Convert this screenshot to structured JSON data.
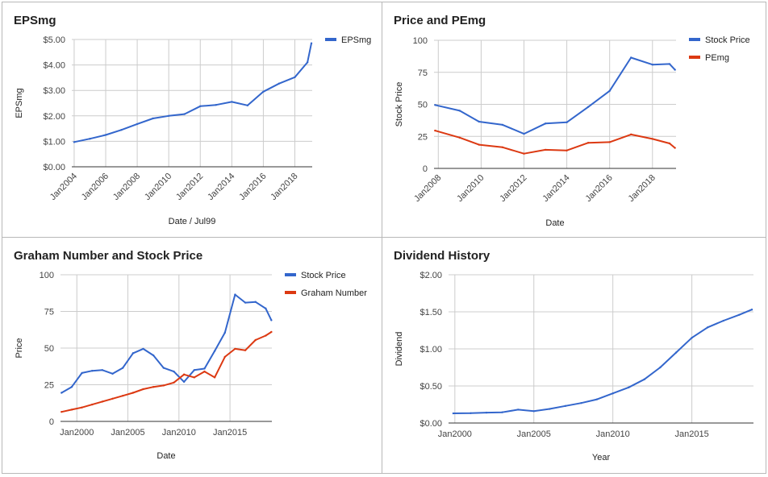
{
  "chart_data": [
    {
      "type": "line",
      "title": "EPSmg",
      "xlabel": "Date / Jul99",
      "ylabel": "EPSmg",
      "x_tick_labels": [
        "Jan2004",
        "Jan2006",
        "Jan2008",
        "Jan2010",
        "Jan2012",
        "Jan2014",
        "Jan2016",
        "Jan2018"
      ],
      "y_tick_labels": [
        "$0.00",
        "$1.00",
        "$2.00",
        "$3.00",
        "$4.00",
        "$5.00"
      ],
      "xlim": [
        2003.85,
        2019.1
      ],
      "ylim": [
        0,
        5
      ],
      "legend": "right",
      "series": [
        {
          "name": "EPSmg",
          "color": "#3366cc",
          "x": [
            2004.0,
            2005.0,
            2006.0,
            2007.0,
            2008.0,
            2009.0,
            2010.0,
            2011.0,
            2012.0,
            2013.0,
            2014.0,
            2015.0,
            2016.0,
            2017.0,
            2018.0,
            2018.8,
            2019.05
          ],
          "y": [
            0.97,
            1.1,
            1.25,
            1.45,
            1.68,
            1.9,
            2.0,
            2.07,
            2.38,
            2.43,
            2.55,
            2.41,
            2.95,
            3.27,
            3.52,
            4.1,
            4.85
          ]
        }
      ]
    },
    {
      "type": "line",
      "title": "Price and PEmg",
      "xlabel": "Date",
      "ylabel": "Stock Price",
      "x_tick_labels": [
        "Jan2008",
        "Jan2010",
        "Jan2012",
        "Jan2014",
        "Jan2016",
        "Jan2018"
      ],
      "y_tick_labels": [
        "0",
        "25",
        "50",
        "75",
        "100"
      ],
      "xlim": [
        2007.8,
        2019.1
      ],
      "ylim": [
        0,
        100
      ],
      "legend": "right",
      "series": [
        {
          "name": "Stock Price",
          "color": "#3366cc",
          "x": [
            2007.85,
            2009.0,
            2009.9,
            2011.0,
            2012.0,
            2013.0,
            2014.0,
            2015.0,
            2016.0,
            2017.0,
            2018.0,
            2018.8,
            2019.05
          ],
          "y": [
            49.5,
            45,
            36.5,
            34,
            27,
            35,
            36,
            48,
            60.5,
            86.5,
            81,
            81.5,
            77
          ]
        },
        {
          "name": "PEmg",
          "color": "#dc3912",
          "x": [
            2007.85,
            2009.0,
            2009.9,
            2011.0,
            2012.0,
            2013.0,
            2014.0,
            2015.0,
            2016.0,
            2017.0,
            2018.0,
            2018.8,
            2019.05
          ],
          "y": [
            29.5,
            24,
            18.5,
            16.5,
            11.5,
            14.5,
            14,
            20,
            20.5,
            26.5,
            23,
            19.5,
            16
          ]
        }
      ]
    },
    {
      "type": "line",
      "title": "Graham Number and Stock Price",
      "xlabel": "Date",
      "ylabel": "Price",
      "x_tick_labels": [
        "Jan2000",
        "Jan2005",
        "Jan2010",
        "Jan2015"
      ],
      "y_tick_labels": [
        "0",
        "25",
        "50",
        "75",
        "100"
      ],
      "xlim": [
        1998.4,
        2019.1
      ],
      "ylim": [
        0,
        100
      ],
      "legend": "right",
      "series": [
        {
          "name": "Stock Price",
          "color": "#3366cc",
          "x": [
            1998.5,
            1999.5,
            2000.5,
            2001.5,
            2002.5,
            2003.5,
            2004.5,
            2005.5,
            2006.5,
            2007.5,
            2008.5,
            2009.5,
            2010.5,
            2011.5,
            2012.5,
            2013.5,
            2014.5,
            2015.5,
            2016.5,
            2017.5,
            2018.5,
            2019.05
          ],
          "y": [
            19.5,
            23.5,
            33,
            34.5,
            35,
            32.5,
            36.5,
            46.5,
            49.5,
            45,
            36.5,
            34,
            27,
            35,
            36,
            48,
            60.5,
            86.5,
            81,
            81.5,
            77,
            69
          ]
        },
        {
          "name": "Graham Number",
          "color": "#dc3912",
          "x": [
            1998.5,
            1999.5,
            2000.5,
            2001.5,
            2002.5,
            2003.5,
            2004.5,
            2005.5,
            2006.5,
            2007.5,
            2008.5,
            2009.5,
            2010.5,
            2011.5,
            2012.5,
            2013.5,
            2014.5,
            2015.5,
            2016.5,
            2017.5,
            2018.5,
            2019.05
          ],
          "y": [
            6.5,
            8,
            9.5,
            11.5,
            13.5,
            15.5,
            17.5,
            19.5,
            22,
            23.5,
            24.5,
            26.5,
            32,
            30,
            34,
            30,
            44,
            49.5,
            48.5,
            55.5,
            58.5,
            61
          ]
        }
      ]
    },
    {
      "type": "line",
      "title": "Dividend History",
      "xlabel": "Year",
      "ylabel": "Dividend",
      "x_tick_labels": [
        "Jan2000",
        "Jan2005",
        "Jan2010",
        "Jan2015"
      ],
      "y_tick_labels": [
        "$0.00",
        "$0.50",
        "$1.00",
        "$1.50",
        "$2.00"
      ],
      "xlim": [
        1999.6,
        2018.9
      ],
      "ylim": [
        0,
        2
      ],
      "legend": "none",
      "series": [
        {
          "name": "",
          "color": "#3366cc",
          "x": [
            1999.9,
            2001.0,
            2002.0,
            2003.0,
            2004.0,
            2005.0,
            2006.0,
            2007.0,
            2008.0,
            2009.0,
            2010.0,
            2011.0,
            2012.0,
            2013.0,
            2014.0,
            2015.0,
            2016.0,
            2017.0,
            2018.0,
            2018.8
          ],
          "y": [
            0.13,
            0.133,
            0.14,
            0.145,
            0.18,
            0.16,
            0.19,
            0.23,
            0.27,
            0.32,
            0.4,
            0.48,
            0.59,
            0.75,
            0.95,
            1.15,
            1.29,
            1.38,
            1.46,
            1.53
          ]
        }
      ]
    }
  ]
}
